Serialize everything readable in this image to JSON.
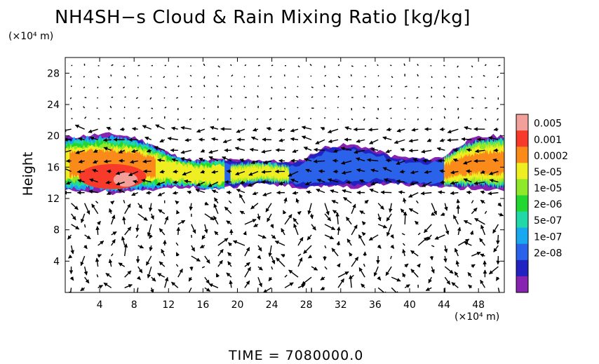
{
  "chart_data": {
    "type": "heatmap",
    "title": "NH4SH−s Cloud & Rain Mixing Ratio [kg/kg]",
    "ylabel": "Height",
    "y_unit": "(×10⁴ m)",
    "x_unit": "(×10⁴ m)",
    "footer": "TIME  =  7080000.0",
    "xlim": [
      0,
      51
    ],
    "ylim": [
      0,
      30
    ],
    "xticks": [
      4,
      8,
      12,
      16,
      20,
      24,
      28,
      32,
      36,
      40,
      44,
      48
    ],
    "yticks": [
      4,
      8,
      12,
      16,
      20,
      24,
      28
    ],
    "colorbar": {
      "labels": [
        "0.005",
        "0.001",
        "0.0002",
        "5e-05",
        "1e-05",
        "2e-06",
        "5e-07",
        "1e-07",
        "2e-08"
      ],
      "colors": [
        "#f4a09a",
        "#f73a2a",
        "#fa8a1a",
        "#eeee22",
        "#8fe82a",
        "#22d830",
        "#22d8a8",
        "#18a8f0",
        "#2a62ea",
        "#2222c0",
        "#8822b0"
      ]
    },
    "cloud_band": {
      "x": [
        0,
        2,
        4,
        6,
        8,
        10,
        12,
        14,
        16,
        18,
        20,
        22,
        24,
        26,
        28,
        30,
        32,
        34,
        36,
        38,
        40,
        42,
        44,
        46,
        48,
        50,
        51
      ],
      "bottom_km": [
        13.0,
        13.0,
        13.0,
        12.6,
        13.0,
        13.0,
        13.5,
        13.5,
        13.2,
        13.2,
        13.5,
        13.8,
        13.8,
        13.6,
        13.4,
        13.6,
        13.6,
        13.4,
        13.8,
        13.8,
        13.7,
        13.6,
        13.4,
        13.3,
        13.3,
        13.0,
        13.0
      ],
      "top_km": [
        19.8,
        20.0,
        20.2,
        20.2,
        19.8,
        19.0,
        17.8,
        17.0,
        16.8,
        17.0,
        16.8,
        17.0,
        16.8,
        16.5,
        17.2,
        18.5,
        18.8,
        18.8,
        18.2,
        17.4,
        17.2,
        17.0,
        17.4,
        19.0,
        19.8,
        20.0,
        20.0
      ]
    }
  }
}
